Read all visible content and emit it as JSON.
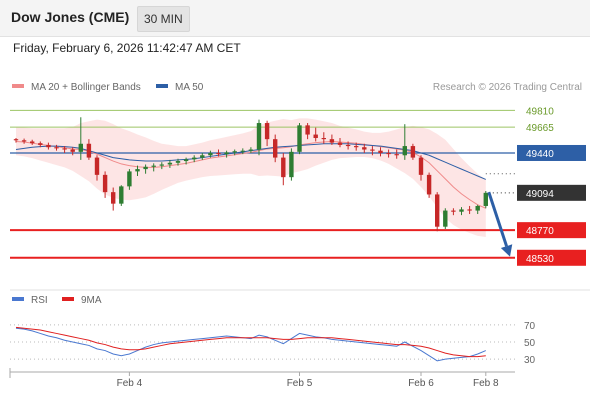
{
  "header": {
    "title": "Dow Jones (CME)",
    "timeframe": "30 MIN"
  },
  "datetime": "Friday, February 6, 2026 11:42:47 AM CET",
  "legend": {
    "items": [
      {
        "label": "MA 20 + Bollinger Bands",
        "color": "#f08a8a"
      },
      {
        "label": "MA 50",
        "color": "#2d5fa6"
      }
    ],
    "credit": "Research © 2026 Trading Central"
  },
  "rsi_legend": {
    "items": [
      {
        "label": "RSI",
        "color": "#4a78d0"
      },
      {
        "label": "9MA",
        "color": "#e02020"
      }
    ]
  },
  "colors": {
    "up": "#2e7d32",
    "down": "#c62828",
    "resistance": "#9cc464",
    "pivot": "#2d5fa6",
    "support": "#e82020",
    "current": "#333333",
    "band": "#fde0e0"
  },
  "chart_data": [
    {
      "type": "candlestick",
      "price_scale": {
        "min": 48450,
        "max": 49900
      },
      "x_ticks": [
        {
          "label": "Feb 4",
          "bar": 14
        },
        {
          "label": "Feb 5",
          "bar": 35
        },
        {
          "label": "Feb 6",
          "bar": 50
        },
        {
          "label": "Feb 8",
          "bar": 58
        }
      ],
      "levels": [
        {
          "value": 49810,
          "label": "49810",
          "kind": "resistance"
        },
        {
          "value": 49665,
          "label": "49665",
          "kind": "resistance"
        },
        {
          "value": 49440,
          "label": "49440",
          "kind": "pivot"
        },
        {
          "value": 49094,
          "label": "49094",
          "kind": "current"
        },
        {
          "value": 48770,
          "label": "48770",
          "kind": "support"
        },
        {
          "value": 48530,
          "label": "48530",
          "kind": "support"
        }
      ],
      "forecast_arrow": {
        "from_value": 49100,
        "to_value": 48540
      },
      "candles": [
        [
          49560,
          49570,
          49530,
          49550
        ],
        [
          49550,
          49565,
          49520,
          49540
        ],
        [
          49540,
          49555,
          49510,
          49525
        ],
        [
          49525,
          49540,
          49490,
          49510
        ],
        [
          49510,
          49530,
          49470,
          49490
        ],
        [
          49490,
          49510,
          49460,
          49480
        ],
        [
          49480,
          49500,
          49440,
          49470
        ],
        [
          49470,
          49490,
          49420,
          49450
        ],
        [
          49450,
          49750,
          49380,
          49520
        ],
        [
          49520,
          49560,
          49380,
          49400
        ],
        [
          49400,
          49420,
          49200,
          49250
        ],
        [
          49250,
          49280,
          49050,
          49100
        ],
        [
          49100,
          49140,
          48940,
          49000
        ],
        [
          49000,
          49160,
          48980,
          49150
        ],
        [
          49150,
          49300,
          49120,
          49280
        ],
        [
          49280,
          49330,
          49240,
          49300
        ],
        [
          49300,
          49340,
          49260,
          49320
        ],
        [
          49320,
          49350,
          49280,
          49330
        ],
        [
          49330,
          49360,
          49300,
          49340
        ],
        [
          49340,
          49380,
          49310,
          49355
        ],
        [
          49355,
          49390,
          49330,
          49370
        ],
        [
          49370,
          49400,
          49340,
          49385
        ],
        [
          49385,
          49420,
          49360,
          49400
        ],
        [
          49400,
          49440,
          49380,
          49420
        ],
        [
          49420,
          49460,
          49400,
          49440
        ],
        [
          49440,
          49470,
          49410,
          49430
        ],
        [
          49430,
          49460,
          49400,
          49445
        ],
        [
          49445,
          49470,
          49420,
          49455
        ],
        [
          49455,
          49480,
          49430,
          49460
        ],
        [
          49460,
          49490,
          49440,
          49470
        ],
        [
          49470,
          49730,
          49420,
          49700
        ],
        [
          49700,
          49720,
          49500,
          49560
        ],
        [
          49560,
          49600,
          49360,
          49400
        ],
        [
          49400,
          49440,
          49160,
          49230
        ],
        [
          49230,
          49480,
          49200,
          49450
        ],
        [
          49450,
          49700,
          49430,
          49680
        ],
        [
          49680,
          49700,
          49560,
          49600
        ],
        [
          49600,
          49660,
          49540,
          49570
        ],
        [
          49570,
          49620,
          49520,
          49560
        ],
        [
          49560,
          49600,
          49510,
          49530
        ],
        [
          49530,
          49570,
          49490,
          49510
        ],
        [
          49510,
          49540,
          49470,
          49500
        ],
        [
          49500,
          49530,
          49460,
          49490
        ],
        [
          49490,
          49520,
          49440,
          49470
        ],
        [
          49470,
          49500,
          49420,
          49460
        ],
        [
          49460,
          49490,
          49410,
          49440
        ],
        [
          49440,
          49470,
          49400,
          49430
        ],
        [
          49430,
          49470,
          49390,
          49420
        ],
        [
          49420,
          49690,
          49380,
          49500
        ],
        [
          49500,
          49520,
          49380,
          49400
        ],
        [
          49400,
          49420,
          49200,
          49250
        ],
        [
          49250,
          49270,
          49050,
          49080
        ],
        [
          49080,
          49100,
          48760,
          48800
        ],
        [
          48800,
          48960,
          48780,
          48940
        ],
        [
          48940,
          48960,
          48900,
          48930
        ],
        [
          48930,
          48970,
          48900,
          48950
        ],
        [
          48950,
          48980,
          48910,
          48940
        ],
        [
          48940,
          48990,
          48910,
          48980
        ],
        [
          48980,
          49110,
          48960,
          49094
        ]
      ],
      "ma50": [
        49470,
        49480,
        49490,
        49495,
        49500,
        49500,
        49495,
        49490,
        49480,
        49460,
        49440,
        49420,
        49400,
        49390,
        49380,
        49375,
        49370,
        49370,
        49370,
        49375,
        49380,
        49385,
        49390,
        49400,
        49410,
        49420,
        49430,
        49440,
        49450,
        49460,
        49470,
        49480,
        49490,
        49495,
        49500,
        49505,
        49510,
        49515,
        49520,
        49520,
        49520,
        49520,
        49515,
        49510,
        49505,
        49500,
        49490,
        49480,
        49470,
        49460,
        49440,
        49420,
        49390,
        49360,
        49330,
        49300,
        49270,
        49240,
        49210
      ],
      "ma20": [
        49540,
        49535,
        49525,
        49515,
        49505,
        49495,
        49485,
        49475,
        49470,
        49455,
        49430,
        49400,
        49370,
        49345,
        49330,
        49320,
        49315,
        49315,
        49320,
        49330,
        49340,
        49350,
        49365,
        49380,
        49395,
        49405,
        49415,
        49425,
        49435,
        49445,
        49460,
        49475,
        49480,
        49485,
        49495,
        49510,
        49520,
        49530,
        49535,
        49540,
        49535,
        49530,
        49525,
        49515,
        49505,
        49495,
        49485,
        49475,
        49465,
        49445,
        49405,
        49355,
        49285,
        49215,
        49145,
        49085,
        49035,
        48990,
        48960
      ],
      "bb_width": [
        120,
        125,
        130,
        140,
        150,
        160,
        170,
        190,
        230,
        260,
        300,
        320,
        320,
        310,
        300,
        280,
        260,
        230,
        200,
        180,
        160,
        150,
        150,
        150,
        155,
        160,
        165,
        170,
        175,
        185,
        220,
        230,
        240,
        250,
        230,
        230,
        220,
        200,
        180,
        160,
        140,
        130,
        120,
        110,
        110,
        120,
        140,
        170,
        200,
        230,
        260,
        290,
        320,
        340,
        330,
        310,
        290,
        270,
        250
      ]
    },
    {
      "type": "line",
      "title": "RSI",
      "ylim": [
        15,
        85
      ],
      "y_ticks": [
        70,
        50,
        30
      ],
      "rsi": [
        66,
        65,
        63,
        60,
        57,
        55,
        52,
        50,
        48,
        46,
        42,
        40,
        36,
        34,
        36,
        40,
        44,
        47,
        49,
        50,
        51,
        52,
        53,
        54,
        55,
        56,
        57,
        56,
        55,
        54,
        58,
        56,
        52,
        48,
        54,
        60,
        58,
        56,
        55,
        53,
        52,
        51,
        50,
        49,
        48,
        47,
        46,
        45,
        50,
        45,
        40,
        34,
        28,
        30,
        31,
        32,
        33,
        36,
        40
      ],
      "ma9": [
        67,
        66,
        65,
        64,
        62,
        60,
        58,
        56,
        54,
        52,
        49,
        47,
        44,
        42,
        41,
        41,
        42,
        44,
        46,
        48,
        49,
        50,
        51,
        52,
        53,
        54,
        55,
        55,
        55,
        55,
        55,
        55,
        54,
        53,
        53,
        54,
        55,
        55,
        55,
        55,
        54,
        53,
        52,
        51,
        50,
        49,
        48,
        47,
        47,
        46,
        45,
        43,
        40,
        37,
        35,
        34,
        33,
        33,
        34
      ]
    }
  ]
}
